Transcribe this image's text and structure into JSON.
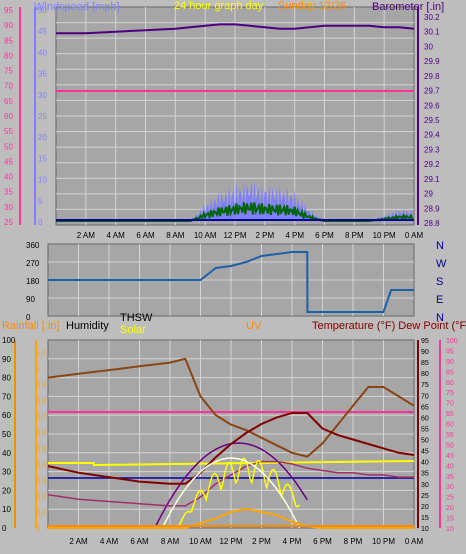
{
  "header": {
    "left_label": "Windspeed [mph]",
    "center_label": "24 hour graph day",
    "date_label": "Sunday 12/26",
    "right_label": "Barometer [.in]"
  },
  "x_ticks": [
    "2 AM",
    "4 AM",
    "6 AM",
    "8 AM",
    "10 AM",
    "12 PM",
    "2 PM",
    "4 PM",
    "6 PM",
    "8 PM",
    "10 PM",
    "0 AM"
  ],
  "wind_axis": [
    "95",
    "90",
    "85",
    "80",
    "75",
    "70",
    "65",
    "60",
    "55",
    "50",
    "45",
    "40",
    "35",
    "30",
    "25"
  ],
  "wind_inner_axis": [
    "50",
    "45",
    "40",
    "35",
    "30",
    "25",
    "20",
    "15",
    "10",
    "5",
    "0"
  ],
  "baro_axis": [
    "30.2",
    "30.1",
    "30",
    "29.9",
    "29.8",
    "29.7",
    "29.6",
    "29.5",
    "29.4",
    "29.3",
    "29.2",
    "29.1",
    "29",
    "28.9",
    "28.8"
  ],
  "dir_axis": [
    "360",
    "270",
    "180",
    "90",
    "0"
  ],
  "dir_letters": [
    "N",
    "W",
    "S",
    "E",
    "N"
  ],
  "bottom_labels": {
    "rainfall": "Rainfall [.in]",
    "humidity": "Humidity",
    "thsw": "THSW",
    "solar": "Solar",
    "uv": "UV",
    "temperature": "Temperature (°F) Dew Point (°F)"
  },
  "rain_axis": [
    "100",
    "90",
    "80",
    "70",
    "60",
    "50",
    "40",
    "30",
    "20",
    "10",
    "0"
  ],
  "uv_axis": [
    "1.1",
    "1",
    "0.9",
    "0.8",
    "0.7",
    "0.6",
    "0.5",
    "0.4",
    "0.3",
    "0.2",
    "0.1",
    "0"
  ],
  "temp_axis_a": [
    "95",
    "90",
    "85",
    "80",
    "75",
    "70",
    "65",
    "60",
    "55",
    "50",
    "45",
    "40",
    "35",
    "30",
    "25",
    "20",
    "15",
    "10"
  ],
  "temp_axis_b": [
    "100",
    "95",
    "90",
    "85",
    "80",
    "75",
    "70",
    "65",
    "60",
    "55",
    "50",
    "45",
    "40",
    "35",
    "30",
    "25",
    "20",
    "15",
    "10"
  ],
  "colors": {
    "background": "#bdbdbd",
    "plot": "#a6a6a6",
    "grid": "#d3d3d3",
    "wind": "#8080ff",
    "barometer": "#4b0082",
    "gust": "#0000a0",
    "direction": "#1f5fa8",
    "pink": "#ff3399",
    "temperature": "#800000",
    "humidity": "#8b4513",
    "dewpoint": "#ee3388",
    "solar": "#ffff00",
    "uv": "#ffa500",
    "thsw": "#6b0080"
  },
  "chart_data": [
    {
      "type": "line",
      "title": "24 hour graph day",
      "ylabel": "Windspeed [mph]",
      "y2label": "Barometer [.in]",
      "x_hours": [
        0,
        2,
        4,
        6,
        8,
        9,
        10,
        11,
        12,
        13,
        14,
        15,
        16,
        17,
        18,
        19,
        20,
        21,
        22,
        23,
        24
      ],
      "series": [
        {
          "name": "Barometer",
          "axis": "right",
          "values": [
            30.09,
            30.09,
            30.1,
            30.11,
            30.12,
            30.13,
            30.14,
            30.15,
            30.15,
            30.14,
            30.13,
            30.12,
            30.12,
            30.13,
            30.14,
            30.14,
            30.14,
            30.14,
            30.13,
            30.13,
            30.12
          ]
        },
        {
          "name": "Windspeed",
          "axis": "inner",
          "values": [
            0,
            0,
            0,
            0,
            0,
            0,
            3,
            5,
            6,
            7,
            6,
            6,
            5,
            2,
            0,
            0,
            0,
            0,
            1,
            2,
            2
          ]
        }
      ]
    },
    {
      "type": "line",
      "ylabel": "Wind direction",
      "x_hours": [
        0,
        8,
        10,
        11,
        12,
        13,
        14,
        15,
        16,
        17,
        17.01,
        22,
        22.5,
        24
      ],
      "values": [
        180,
        180,
        180,
        240,
        250,
        270,
        300,
        310,
        320,
        320,
        20,
        20,
        130,
        130
      ]
    },
    {
      "type": "line",
      "x_hours": [
        0,
        2,
        4,
        6,
        8,
        9,
        10,
        11,
        12,
        13,
        14,
        15,
        16,
        17,
        18,
        19,
        20,
        21,
        22,
        23,
        24
      ],
      "series": [
        {
          "name": "Humidity",
          "axis": "left",
          "values": [
            80,
            82,
            84,
            86,
            88,
            90,
            70,
            60,
            55,
            52,
            48,
            44,
            40,
            38,
            45,
            55,
            65,
            75,
            75,
            70,
            65
          ]
        },
        {
          "name": "Temperature",
          "axis": "right",
          "values": [
            38,
            35,
            33,
            31,
            30,
            30,
            35,
            42,
            48,
            53,
            57,
            60,
            62,
            62,
            55,
            52,
            50,
            48,
            46,
            44,
            43
          ]
        },
        {
          "name": "Solar",
          "axis": "uv",
          "values": [
            0,
            0,
            0,
            0,
            0,
            0.05,
            0.15,
            0.3,
            0.4,
            0.5,
            0.45,
            0.3,
            0.2,
            0.05,
            0,
            0,
            0,
            0,
            0,
            0,
            0
          ]
        },
        {
          "name": "UV",
          "axis": "uv",
          "values": [
            0,
            0,
            0,
            0,
            0,
            0,
            0.03,
            0.06,
            0.1,
            0.12,
            0.1,
            0.08,
            0.04,
            0.01,
            0,
            0,
            0,
            0,
            0,
            0,
            0
          ]
        }
      ]
    }
  ]
}
